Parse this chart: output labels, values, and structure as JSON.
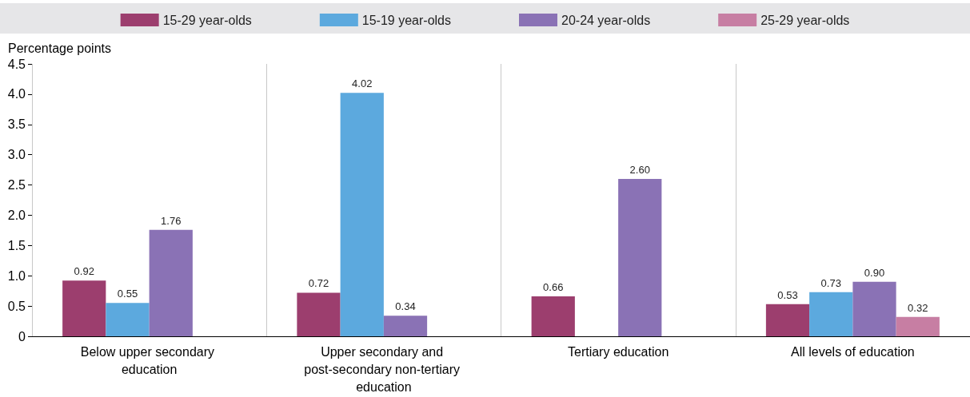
{
  "chart_data": {
    "type": "bar",
    "ylabel": "Percentage points",
    "categories": [
      "Below upper secondary education",
      "Upper secondary and post-secondary non-tertiary education",
      "Tertiary education",
      "All levels of education"
    ],
    "series": [
      {
        "name": "15-29 year-olds",
        "color": "#9c3e6e",
        "values": [
          0.92,
          0.72,
          0.66,
          0.53
        ],
        "value_labels": [
          "0.92",
          "0.72",
          "0.66",
          "0.53"
        ]
      },
      {
        "name": "15-19 year-olds",
        "color": "#5ca9de",
        "values": [
          0.55,
          4.02,
          null,
          0.73
        ],
        "value_labels": [
          "0.55",
          "4.02",
          null,
          "0.73"
        ]
      },
      {
        "name": "20-24 year-olds",
        "color": "#8a72b5",
        "values": [
          1.76,
          0.34,
          2.6,
          0.9
        ],
        "value_labels": [
          "1.76",
          "0.34",
          "2.60",
          "0.90"
        ]
      },
      {
        "name": "25-29 year-olds",
        "color": "#c77ea3",
        "values": [
          null,
          null,
          null,
          0.32
        ],
        "value_labels": [
          null,
          null,
          null,
          "0.32"
        ]
      }
    ],
    "ylim": [
      0,
      4.5
    ],
    "yticks": [
      0,
      {
        "value": 0.5,
        "label": "0.5"
      },
      {
        "value": 1,
        "label": "1.0"
      },
      {
        "value": 1.5,
        "label": "1.5"
      },
      {
        "value": 2,
        "label": "2.0"
      },
      {
        "value": 2.5,
        "label": "2.5"
      },
      {
        "value": 3,
        "label": "3.0"
      },
      {
        "value": 3.5,
        "label": "3.5"
      },
      {
        "value": 4,
        "label": "4.0"
      },
      {
        "value": 4.5,
        "label": "4.5"
      }
    ],
    "grid": "x",
    "legend": "top"
  }
}
